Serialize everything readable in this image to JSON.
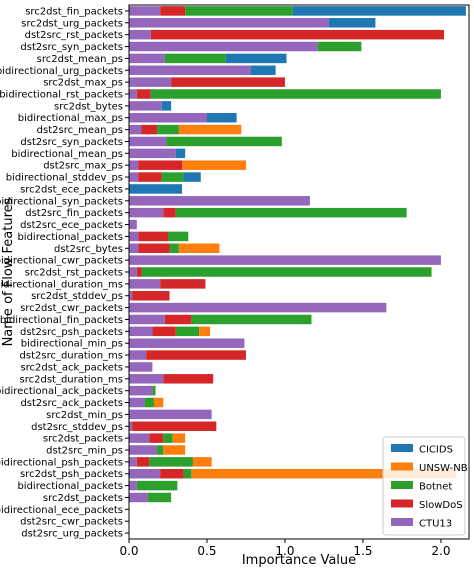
{
  "chart_data": {
    "type": "bar",
    "orientation": "horizontal",
    "stacked": true,
    "xlabel": "Importance Value",
    "ylabel": "Name of Flow Features",
    "xlim": [
      0,
      2.18
    ],
    "xticks": [
      0.0,
      0.5,
      1.0,
      1.5,
      2.0
    ],
    "xtick_labels": [
      "0.0",
      "0.5",
      "1.0",
      "1.5",
      "2.0"
    ],
    "legend_position": "lower-right",
    "grid": false,
    "categories": [
      "src2dst_fin_packets",
      "src2dst_urg_packets",
      "dst2src_rst_packets",
      "dst2src_syn_packets",
      "src2dst_mean_ps",
      "bidirectional_urg_packets",
      "src2dst_max_ps",
      "bidirectional_rst_packets",
      "src2dst_bytes",
      "bidirectional_max_ps",
      "dst2src_mean_ps",
      "dst2src_syn_packets",
      "bidirectional_mean_ps",
      "dst2src_max_ps",
      "bidirectional_stddev_ps",
      "src2dst_ece_packets",
      "bidirectional_syn_packets",
      "dst2src_fin_packets",
      "dst2src_ece_packets",
      "bidirectional_packets",
      "dst2src_bytes",
      "bidirectional_cwr_packets",
      "src2dst_rst_packets",
      "bidirectional_duration_ms",
      "src2dst_stddev_ps",
      "src2dst_cwr_packets",
      "bidirectional_fin_packets",
      "dst2src_psh_packets",
      "bidirectional_min_ps",
      "dst2src_duration_ms",
      "src2dst_ack_packets",
      "src2dst_duration_ms",
      "bidirectional_ack_packets",
      "dst2src_ack_packets",
      "src2dst_min_ps",
      "dst2src_stddev_ps",
      "src2dst_packets",
      "dst2src_min_ps",
      "bidirectional_psh_packets",
      "src2dst_psh_packets",
      "bidirectional_packets",
      "src2dst_packets",
      "bidirectional_ece_packets",
      "dst2src_cwr_packets",
      "dst2src_urg_packets"
    ],
    "series": [
      {
        "name": "CTU13",
        "color": "#9467bd",
        "values": [
          0.2,
          1.28,
          0.14,
          1.21,
          0.23,
          0.78,
          0.27,
          0.05,
          0.21,
          0.5,
          0.08,
          0.24,
          0.3,
          0.06,
          0.06,
          0.0,
          1.16,
          0.22,
          0.05,
          0.06,
          0.06,
          2.0,
          0.05,
          0.2,
          0.02,
          1.65,
          0.23,
          0.15,
          0.74,
          0.11,
          0.15,
          0.22,
          0.15,
          0.1,
          0.53,
          0.02,
          0.13,
          0.18,
          0.05,
          0.2,
          0.05,
          0.12,
          0.0,
          0.0,
          0.0
        ]
      },
      {
        "name": "SlowDoS",
        "color": "#d62728",
        "values": [
          0.16,
          0.0,
          1.88,
          0.0,
          0.0,
          0.0,
          0.73,
          0.09,
          0.0,
          0.0,
          0.1,
          0.0,
          0.0,
          0.28,
          0.15,
          0.0,
          0.0,
          0.08,
          0.0,
          0.19,
          0.2,
          0.0,
          0.03,
          0.29,
          0.24,
          0.0,
          0.17,
          0.15,
          0.0,
          0.64,
          0.0,
          0.32,
          0.0,
          0.0,
          0.0,
          0.54,
          0.09,
          0.0,
          0.08,
          0.15,
          0.0,
          0.0,
          0.0,
          0.0,
          0.0
        ]
      },
      {
        "name": "Botnet",
        "color": "#2ca02c",
        "values": [
          0.69,
          0.0,
          0.0,
          0.28,
          0.39,
          0.0,
          0.0,
          1.86,
          0.0,
          0.0,
          0.14,
          0.74,
          0.0,
          0.0,
          0.14,
          0.0,
          0.0,
          1.48,
          0.0,
          0.13,
          0.06,
          0.0,
          1.86,
          0.0,
          0.0,
          0.0,
          0.77,
          0.15,
          0.0,
          0.0,
          0.0,
          0.0,
          0.02,
          0.06,
          0.0,
          0.0,
          0.06,
          0.04,
          0.28,
          0.05,
          0.26,
          0.15,
          0.0,
          0.0,
          0.0
        ]
      },
      {
        "name": "UNSW-NB",
        "color": "#ff7f0e",
        "values": [
          0.0,
          0.0,
          0.0,
          0.0,
          0.0,
          0.0,
          0.0,
          0.0,
          0.0,
          0.0,
          0.4,
          0.0,
          0.0,
          0.41,
          0.0,
          0.0,
          0.0,
          0.0,
          0.0,
          0.0,
          0.26,
          0.0,
          0.0,
          0.0,
          0.0,
          0.0,
          0.0,
          0.07,
          0.0,
          0.0,
          0.0,
          0.0,
          0.0,
          0.06,
          0.0,
          0.0,
          0.08,
          0.14,
          0.12,
          1.7,
          0.0,
          0.0,
          0.0,
          0.0,
          0.0
        ]
      },
      {
        "name": "CICIDS",
        "color": "#1f77b4",
        "values": [
          1.11,
          0.3,
          0.0,
          0.0,
          0.39,
          0.16,
          0.0,
          0.0,
          0.06,
          0.19,
          0.0,
          0.0,
          0.06,
          0.0,
          0.11,
          0.34,
          0.0,
          0.0,
          0.0,
          0.0,
          0.0,
          0.0,
          0.0,
          0.0,
          0.0,
          0.0,
          0.0,
          0.0,
          0.0,
          0.0,
          0.0,
          0.0,
          0.0,
          0.0,
          0.0,
          0.0,
          0.0,
          0.0,
          0.0,
          0.0,
          0.0,
          0.0,
          0.0,
          0.0,
          0.0
        ]
      }
    ],
    "legend_order": [
      "CICIDS",
      "UNSW-NB",
      "Botnet",
      "SlowDoS",
      "CTU13"
    ]
  }
}
